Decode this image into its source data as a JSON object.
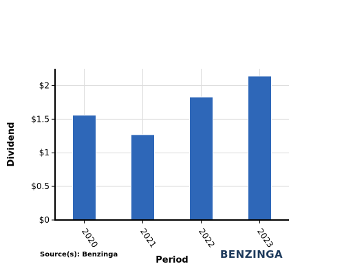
{
  "chart_data": {
    "type": "bar",
    "categories": [
      "2020",
      "2021",
      "2022",
      "2023"
    ],
    "values": [
      1.56,
      1.27,
      1.83,
      2.14
    ],
    "xlabel": "Period",
    "ylabel": "Dividend",
    "ylim": [
      0,
      2.25
    ],
    "yticks": [
      0,
      0.5,
      1,
      1.5,
      2
    ],
    "ytick_labels": [
      "$0",
      "$0.5",
      "$1",
      "$1.5",
      "$2"
    ],
    "grid": true,
    "bar_color": "#2e67b8"
  },
  "source": "Source(s): Benzinga",
  "brand": "BENZINGA"
}
